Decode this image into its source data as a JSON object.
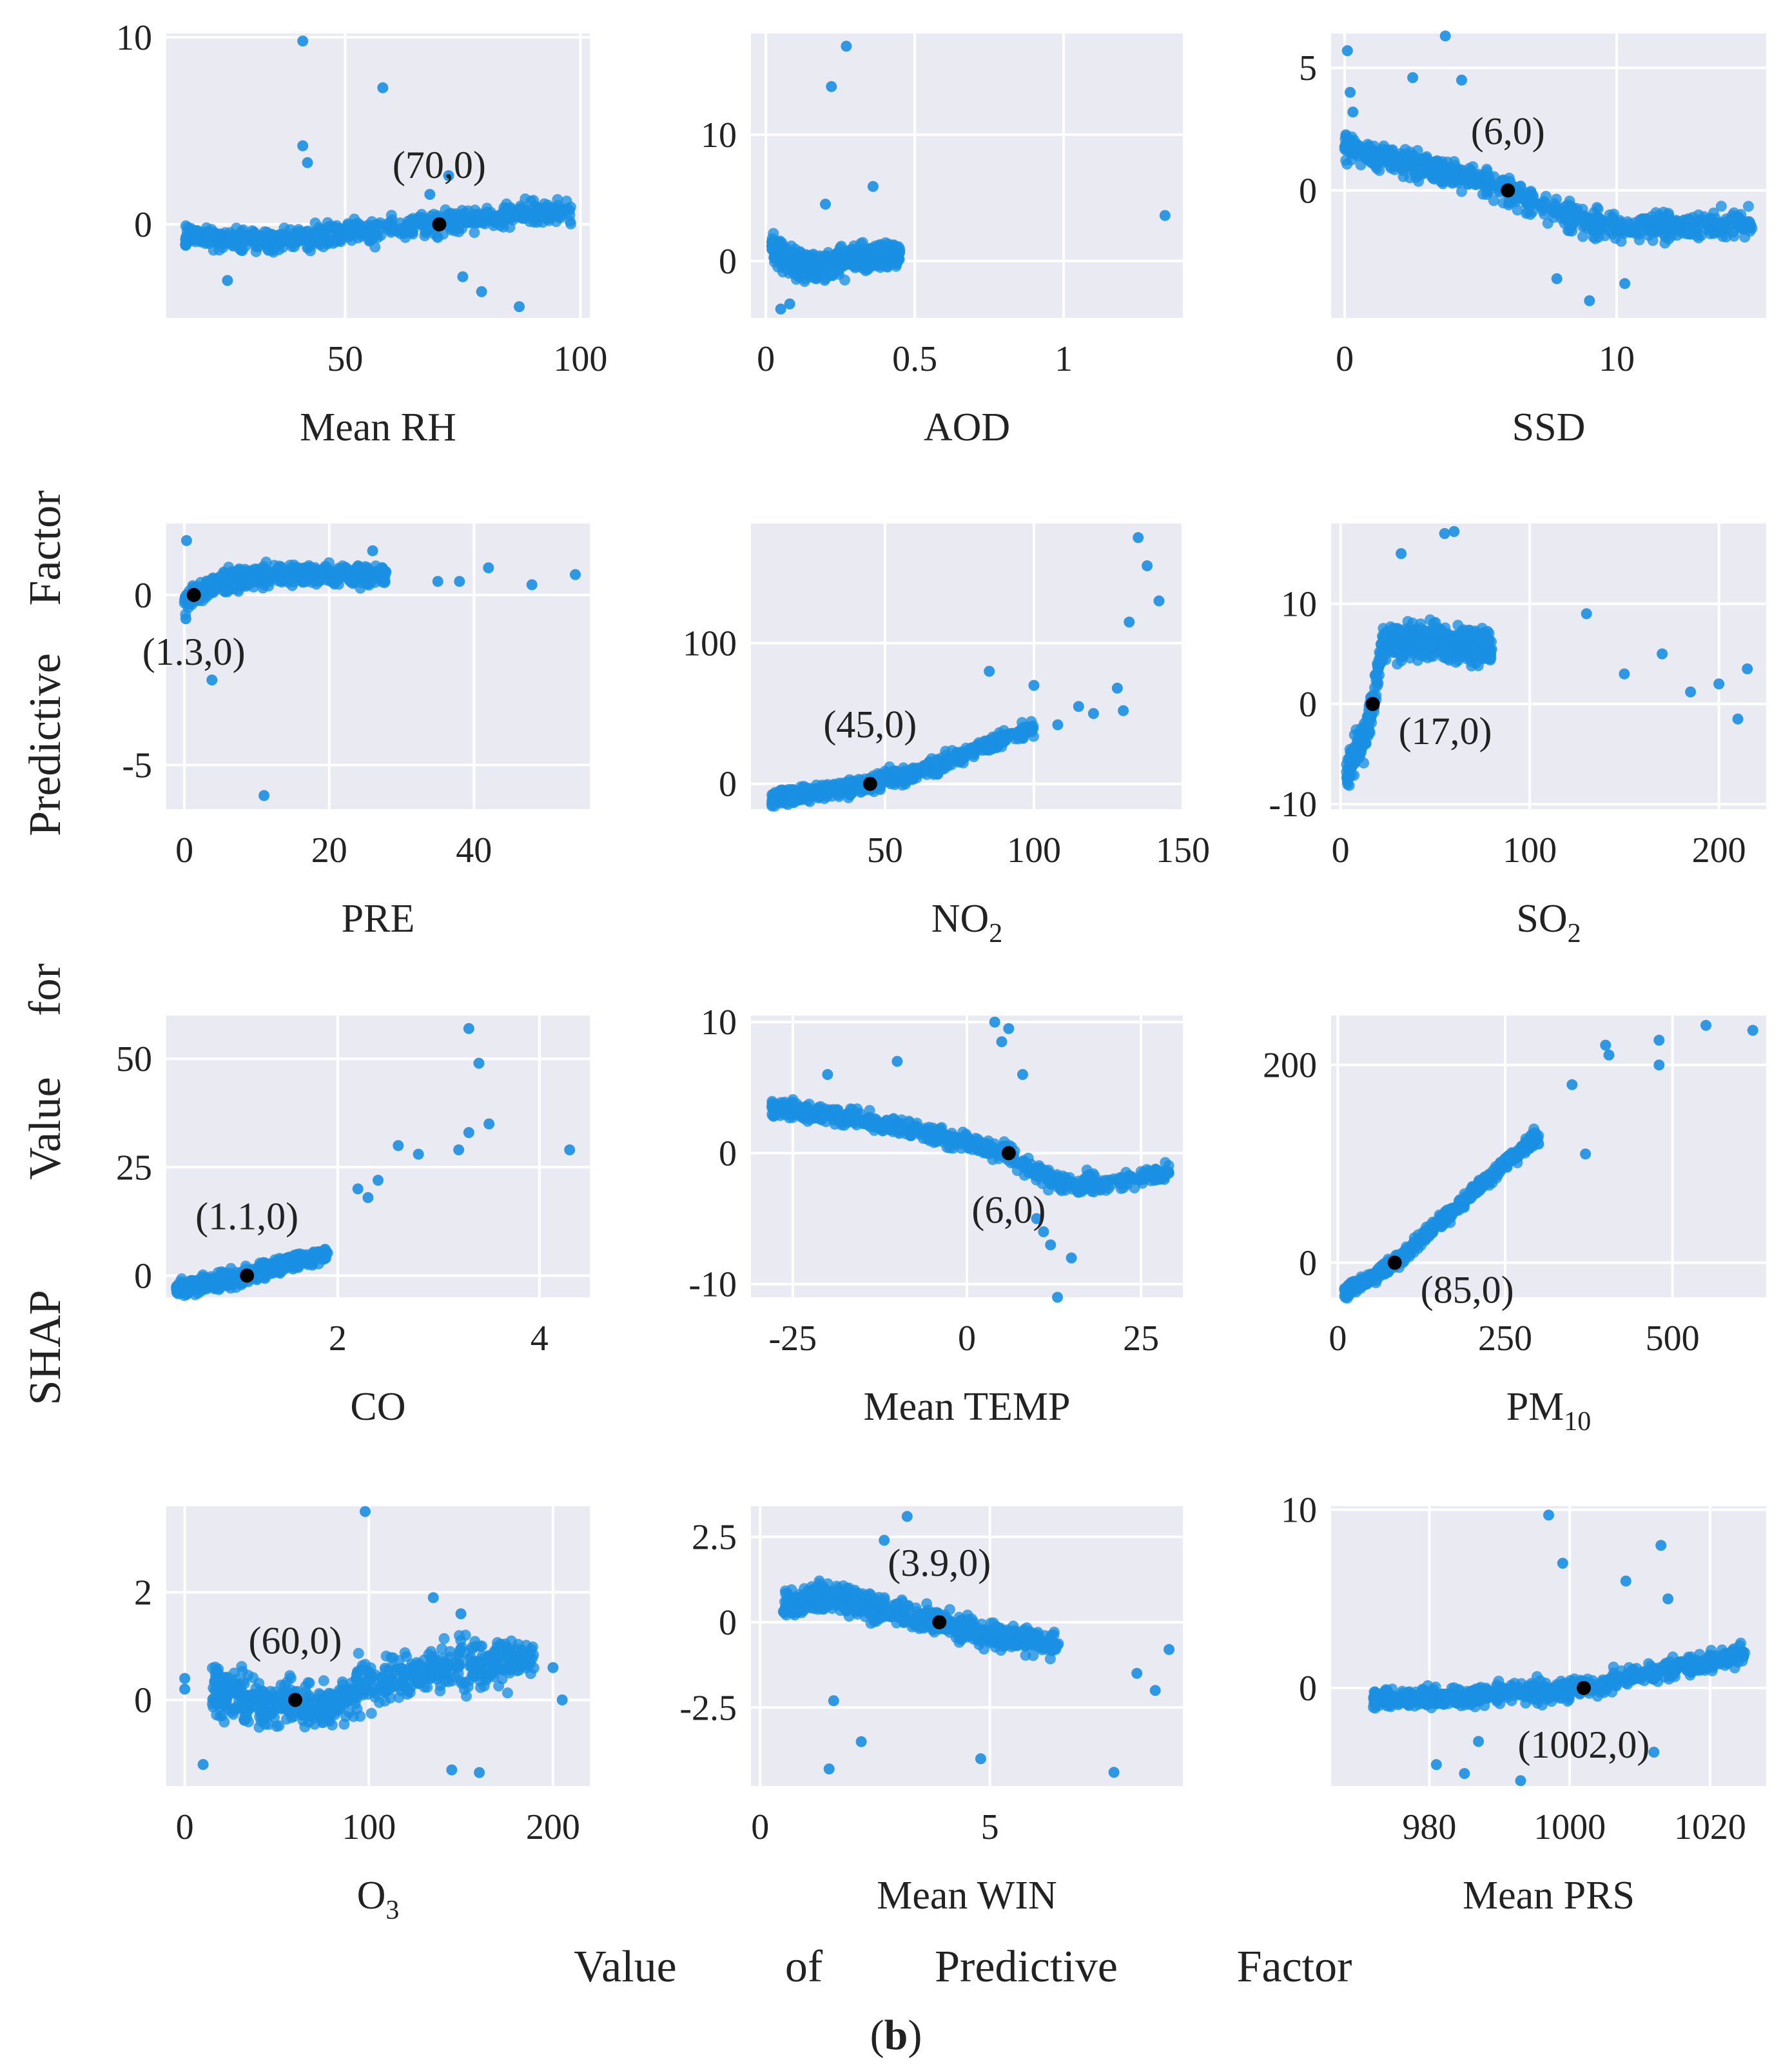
{
  "figure": {
    "ylabel_words": [
      "SHAP",
      "Value",
      "for",
      "Predictive",
      "Factor"
    ],
    "xlabel_words": [
      "Value",
      "of",
      "Predictive",
      "Factor"
    ],
    "panel_label_open": "(",
    "panel_label_letter": "b",
    "panel_label_close": ")"
  },
  "colors": {
    "points": "#1a8fe3",
    "highlight": "#000000",
    "background": "#e9eaf2",
    "grid": "#ffffff"
  },
  "chart_data": [
    {
      "type": "scatter",
      "xlabel": "Mean RH",
      "sub": "",
      "xlim": [
        12,
        102
      ],
      "ylim": [
        -5,
        10.2
      ],
      "xticks": [
        50,
        100
      ],
      "yticks": [
        0,
        10
      ],
      "highlight": [
        70,
        0
      ],
      "annotation": "(70,0)",
      "ann_pos": "above",
      "trend": [
        [
          16,
          -0.6
        ],
        [
          30,
          -0.9
        ],
        [
          45,
          -0.6
        ],
        [
          60,
          -0.2
        ],
        [
          70,
          0
        ],
        [
          80,
          0.4
        ],
        [
          90,
          0.6
        ],
        [
          98,
          0.7
        ]
      ],
      "xrange": [
        16,
        98
      ],
      "spread": 0.55,
      "outliers": [
        [
          41,
          9.8
        ],
        [
          58,
          7.3
        ],
        [
          41,
          4.2
        ],
        [
          42,
          3.3
        ],
        [
          72,
          2.6
        ],
        [
          75,
          -2.8
        ],
        [
          79,
          -3.6
        ],
        [
          87,
          -4.4
        ],
        [
          25,
          -3.0
        ],
        [
          68,
          1.6
        ]
      ]
    },
    {
      "type": "scatter",
      "xlabel": "AOD",
      "sub": "",
      "xlim": [
        -0.05,
        1.4
      ],
      "ylim": [
        -4.5,
        18
      ],
      "xticks": [
        0.0,
        0.5,
        1.0
      ],
      "yticks": [
        0,
        10
      ],
      "highlight": null,
      "annotation": "",
      "ann_pos": "above",
      "trend": [
        [
          0.02,
          1.2
        ],
        [
          0.08,
          0.0
        ],
        [
          0.15,
          -0.5
        ],
        [
          0.25,
          0.0
        ],
        [
          0.35,
          0.4
        ],
        [
          0.45,
          0.5
        ]
      ],
      "xrange": [
        0.02,
        0.45
      ],
      "spread": 0.9,
      "outliers": [
        [
          0.27,
          17.0
        ],
        [
          0.22,
          13.8
        ],
        [
          0.2,
          4.5
        ],
        [
          0.36,
          5.9
        ],
        [
          1.34,
          3.6
        ],
        [
          0.05,
          -3.8
        ],
        [
          0.08,
          -3.4
        ]
      ]
    },
    {
      "type": "scatter",
      "xlabel": "SSD",
      "sub": "",
      "xlim": [
        -0.5,
        15.5
      ],
      "ylim": [
        -5.2,
        6.4
      ],
      "xticks": [
        0,
        10
      ],
      "yticks": [
        0,
        5
      ],
      "highlight": [
        6,
        0
      ],
      "annotation": "(6,0)",
      "ann_pos": "above",
      "trend": [
        [
          0,
          1.8
        ],
        [
          2,
          1.2
        ],
        [
          4,
          0.7
        ],
        [
          6,
          0
        ],
        [
          8,
          -1.0
        ],
        [
          10,
          -1.5
        ],
        [
          13,
          -1.4
        ],
        [
          15,
          -1.3
        ]
      ],
      "xrange": [
        0,
        15
      ],
      "spread": 0.5,
      "outliers": [
        [
          0.1,
          5.7
        ],
        [
          3.7,
          6.3
        ],
        [
          2.5,
          4.6
        ],
        [
          4.3,
          4.5
        ],
        [
          0.2,
          4.0
        ],
        [
          0.3,
          3.2
        ],
        [
          9.0,
          -4.5
        ],
        [
          10.3,
          -3.8
        ],
        [
          7.8,
          -3.6
        ]
      ]
    },
    {
      "type": "scatter",
      "xlabel": "PRE",
      "sub": "",
      "xlim": [
        -2.5,
        56
      ],
      "ylim": [
        -6.3,
        2.1
      ],
      "xticks": [
        0,
        20,
        40
      ],
      "yticks": [
        -5,
        0
      ],
      "highlight": [
        1.3,
        0
      ],
      "annotation": "(1.3,0)",
      "ann_pos": "below",
      "trend": [
        [
          0,
          -0.2
        ],
        [
          1.3,
          0
        ],
        [
          5,
          0.4
        ],
        [
          12,
          0.6
        ],
        [
          20,
          0.6
        ],
        [
          28,
          0.6
        ]
      ],
      "xrange": [
        0,
        28
      ],
      "spread": 0.25,
      "outliers": [
        [
          0.3,
          1.6
        ],
        [
          26,
          1.3
        ],
        [
          35,
          0.4
        ],
        [
          38,
          0.4
        ],
        [
          42,
          0.8
        ],
        [
          48,
          0.3
        ],
        [
          54,
          0.6
        ],
        [
          3.8,
          -2.5
        ],
        [
          11,
          -5.9
        ],
        [
          0.2,
          -0.7
        ]
      ]
    },
    {
      "type": "scatter",
      "xlabel": "NO",
      "sub": "2",
      "xlim": [
        5,
        150
      ],
      "ylim": [
        -18,
        185
      ],
      "xticks": [
        50,
        100,
        150
      ],
      "yticks": [
        0,
        100
      ],
      "highlight": [
        45,
        0
      ],
      "annotation": "(45,0)",
      "ann_pos": "above",
      "trend": [
        [
          12,
          -10
        ],
        [
          25,
          -7
        ],
        [
          45,
          0
        ],
        [
          60,
          8
        ],
        [
          75,
          20
        ],
        [
          90,
          32
        ],
        [
          100,
          40
        ]
      ],
      "xrange": [
        12,
        100
      ],
      "spread": 5,
      "outliers": [
        [
          135,
          175
        ],
        [
          138,
          155
        ],
        [
          142,
          130
        ],
        [
          132,
          115
        ],
        [
          128,
          68
        ],
        [
          115,
          55
        ],
        [
          85,
          80
        ],
        [
          100,
          70
        ],
        [
          120,
          50
        ],
        [
          130,
          52
        ],
        [
          108,
          42
        ]
      ]
    },
    {
      "type": "scatter",
      "xlabel": "SO",
      "sub": "2",
      "xlim": [
        -5,
        225
      ],
      "ylim": [
        -10.5,
        18
      ],
      "xticks": [
        0,
        100,
        200
      ],
      "yticks": [
        -10,
        0,
        10
      ],
      "highlight": [
        17,
        0
      ],
      "annotation": "(17,0)",
      "ann_pos": "right",
      "trend": [
        [
          3,
          -7
        ],
        [
          8,
          -5
        ],
        [
          13,
          -3
        ],
        [
          17,
          0
        ],
        [
          22,
          6
        ],
        [
          40,
          6.5
        ],
        [
          60,
          6
        ],
        [
          80,
          5.5
        ]
      ],
      "xrange": [
        3,
        80
      ],
      "spread": 1.5,
      "outliers": [
        [
          55,
          17
        ],
        [
          60,
          17.2
        ],
        [
          32,
          15
        ],
        [
          130,
          9
        ],
        [
          200,
          2
        ],
        [
          210,
          -1.5
        ],
        [
          215,
          3.5
        ],
        [
          185,
          1.2
        ],
        [
          170,
          5
        ],
        [
          150,
          3
        ]
      ]
    },
    {
      "type": "scatter",
      "xlabel": "CO",
      "sub": "",
      "xlim": [
        0.3,
        4.5
      ],
      "ylim": [
        -5,
        60
      ],
      "xticks": [
        2,
        4
      ],
      "yticks": [
        0,
        25,
        50
      ],
      "highlight": [
        1.1,
        0
      ],
      "annotation": "(1.1,0)",
      "ann_pos": "above",
      "trend": [
        [
          0.4,
          -3
        ],
        [
          0.8,
          -1.5
        ],
        [
          1.1,
          0
        ],
        [
          1.5,
          3
        ],
        [
          1.9,
          5
        ]
      ],
      "xrange": [
        0.4,
        1.9
      ],
      "spread": 1.5,
      "outliers": [
        [
          3.3,
          57
        ],
        [
          3.4,
          49
        ],
        [
          3.5,
          35
        ],
        [
          3.3,
          33
        ],
        [
          4.3,
          29
        ],
        [
          2.6,
          30
        ],
        [
          2.2,
          20
        ],
        [
          2.3,
          18
        ],
        [
          2.4,
          22
        ],
        [
          2.8,
          28
        ],
        [
          3.2,
          29
        ]
      ]
    },
    {
      "type": "scatter",
      "xlabel": "Mean TEMP",
      "sub": "",
      "xlim": [
        -31,
        31
      ],
      "ylim": [
        -11,
        10.5
      ],
      "xticks": [
        -25,
        0,
        25
      ],
      "yticks": [
        -10,
        0,
        10
      ],
      "highlight": [
        6,
        0
      ],
      "annotation": "(6,0)",
      "ann_pos": "below",
      "trend": [
        [
          -28,
          3.5
        ],
        [
          -15,
          2.5
        ],
        [
          -5,
          1.5
        ],
        [
          6,
          0
        ],
        [
          10,
          -1.5
        ],
        [
          15,
          -2.5
        ],
        [
          22,
          -2.2
        ],
        [
          28,
          -1.5
        ]
      ],
      "xrange": [
        -28,
        29
      ],
      "spread": 0.6,
      "outliers": [
        [
          4,
          10
        ],
        [
          5,
          8.5
        ],
        [
          6,
          9.5
        ],
        [
          8,
          6
        ],
        [
          10,
          -5
        ],
        [
          12,
          -7
        ],
        [
          13,
          -11
        ],
        [
          15,
          -8
        ],
        [
          11,
          -6
        ],
        [
          -20,
          6
        ],
        [
          -10,
          7
        ]
      ]
    },
    {
      "type": "scatter",
      "xlabel": "PM",
      "sub": "10",
      "xlim": [
        -10,
        640
      ],
      "ylim": [
        -35,
        250
      ],
      "xticks": [
        0,
        250,
        500
      ],
      "yticks": [
        0,
        200
      ],
      "highlight": [
        85,
        0
      ],
      "annotation": "(85,0)",
      "ann_pos": "right",
      "trend": [
        [
          10,
          -30
        ],
        [
          50,
          -15
        ],
        [
          85,
          0
        ],
        [
          150,
          40
        ],
        [
          200,
          70
        ],
        [
          250,
          100
        ],
        [
          300,
          130
        ]
      ],
      "xrange": [
        10,
        300
      ],
      "spread": 6,
      "outliers": [
        [
          400,
          220
        ],
        [
          405,
          210
        ],
        [
          480,
          225
        ],
        [
          480,
          200
        ],
        [
          550,
          240
        ],
        [
          620,
          235
        ],
        [
          350,
          180
        ],
        [
          370,
          110
        ],
        [
          300,
          120
        ]
      ]
    },
    {
      "type": "scatter",
      "xlabel": "O",
      "sub": "3",
      "xlim": [
        -10,
        220
      ],
      "ylim": [
        -1.6,
        3.6
      ],
      "xticks": [
        0,
        100,
        200
      ],
      "yticks": [
        0,
        2
      ],
      "highlight": [
        60,
        0
      ],
      "annotation": "(60,0)",
      "ann_pos": "above",
      "trend": [
        [
          15,
          0.2
        ],
        [
          40,
          -0.1
        ],
        [
          60,
          0
        ],
        [
          75,
          -0.2
        ],
        [
          90,
          0.1
        ],
        [
          110,
          0.4
        ],
        [
          140,
          0.6
        ],
        [
          190,
          0.8
        ]
      ],
      "xrange": [
        15,
        190
      ],
      "spread": 0.4,
      "outliers": [
        [
          98,
          3.5
        ],
        [
          0,
          0.4
        ],
        [
          0,
          0.2
        ],
        [
          135,
          1.9
        ],
        [
          150,
          1.6
        ],
        [
          145,
          -1.3
        ],
        [
          160,
          -1.35
        ],
        [
          200,
          0.6
        ],
        [
          205,
          0.0
        ],
        [
          10,
          -1.2
        ]
      ]
    },
    {
      "type": "scatter",
      "xlabel": "Mean WIN",
      "sub": "",
      "xlim": [
        -0.2,
        9.2
      ],
      "ylim": [
        -4.8,
        3.4
      ],
      "xticks": [
        0,
        5
      ],
      "yticks": [
        -2.5,
        0.0,
        2.5
      ],
      "highlight": [
        3.9,
        0
      ],
      "annotation": "(3.9,0)",
      "ann_pos": "above",
      "trend": [
        [
          0.5,
          0.5
        ],
        [
          1.5,
          0.8
        ],
        [
          2.5,
          0.4
        ],
        [
          3.9,
          0
        ],
        [
          5,
          -0.4
        ],
        [
          6.5,
          -0.6
        ]
      ],
      "xrange": [
        0.5,
        6.5
      ],
      "spread": 0.35,
      "outliers": [
        [
          3.2,
          3.1
        ],
        [
          2.7,
          2.4
        ],
        [
          1.5,
          -4.3
        ],
        [
          2.2,
          -3.5
        ],
        [
          4.8,
          -4.0
        ],
        [
          7.7,
          -4.4
        ],
        [
          8.2,
          -1.5
        ],
        [
          8.9,
          -0.8
        ],
        [
          8.6,
          -2.0
        ],
        [
          1.6,
          -2.3
        ]
      ]
    },
    {
      "type": "scatter",
      "xlabel": "Mean PRS",
      "sub": "",
      "xlim": [
        966,
        1028
      ],
      "ylim": [
        -5.5,
        10.2
      ],
      "xticks": [
        980,
        1000,
        1020
      ],
      "yticks": [
        0,
        10
      ],
      "highlight": [
        1002,
        0
      ],
      "annotation": "(1002,0)",
      "ann_pos": "below",
      "trend": [
        [
          972,
          -0.6
        ],
        [
          985,
          -0.5
        ],
        [
          995,
          -0.2
        ],
        [
          1002,
          0
        ],
        [
          1010,
          0.8
        ],
        [
          1018,
          1.3
        ],
        [
          1025,
          2.0
        ]
      ],
      "xrange": [
        972,
        1025
      ],
      "spread": 0.5,
      "outliers": [
        [
          997,
          9.7
        ],
        [
          999,
          7.0
        ],
        [
          1013,
          8.0
        ],
        [
          1014,
          5.0
        ],
        [
          1008,
          6.0
        ],
        [
          981,
          -4.3
        ],
        [
          985,
          -4.8
        ],
        [
          993,
          -5.2
        ],
        [
          1012,
          -3.6
        ],
        [
          987,
          -3.0
        ]
      ]
    }
  ]
}
